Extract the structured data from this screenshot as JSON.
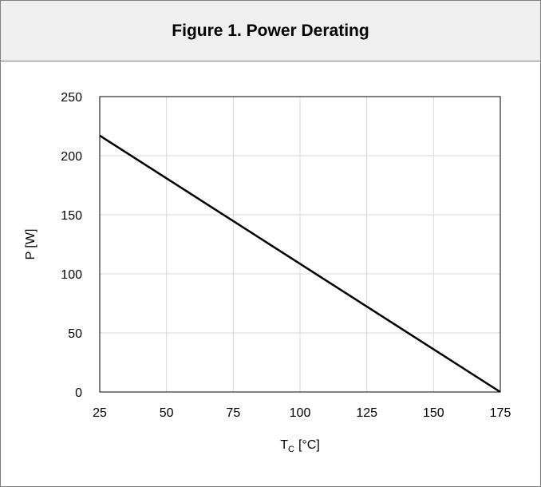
{
  "header": {
    "title": "Figure 1. Power Derating"
  },
  "chart_data": {
    "type": "line",
    "title": "Figure 1. Power Derating",
    "xlabel_main": "T",
    "xlabel_sub": "C",
    "xlabel_unit": "[°C]",
    "ylabel": "P [W]",
    "xlim": [
      25,
      175
    ],
    "ylim": [
      0,
      250
    ],
    "xticks": [
      25,
      50,
      75,
      100,
      125,
      150,
      175
    ],
    "yticks": [
      0,
      50,
      100,
      150,
      200,
      250
    ],
    "grid": true,
    "legend": "none",
    "series": [
      {
        "x": [
          25,
          175
        ],
        "y": [
          217,
          0
        ]
      }
    ],
    "colors": {
      "line": "#000000",
      "grid": "#d9d9d9",
      "frame": "#000000"
    }
  }
}
